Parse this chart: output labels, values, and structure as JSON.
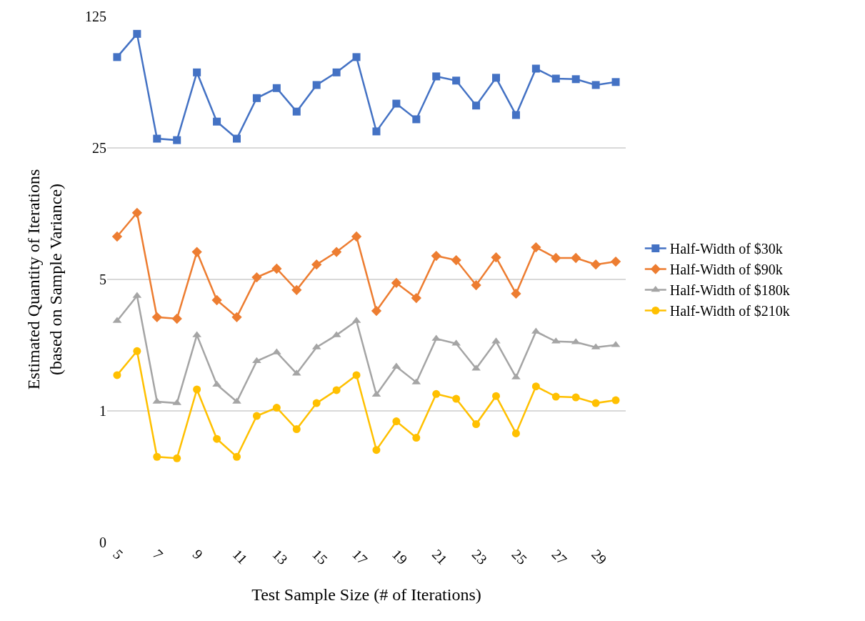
{
  "chart_data": {
    "type": "line",
    "xlabel": "Test Sample Size (# of Iterations)",
    "ylabel": "Estimated Quantity of Iterations\n(based on Sample Variance)",
    "categories": [
      "5",
      null,
      "7",
      null,
      "9",
      null,
      "11",
      null,
      "13",
      null,
      "15",
      null,
      "17",
      null,
      "19",
      null,
      "21",
      null,
      "23",
      null,
      "25",
      null,
      "27",
      null,
      "29",
      null
    ],
    "log": true,
    "ylim": [
      0.2,
      125
    ],
    "yticks": [
      {
        "value": 0.2,
        "label": "0"
      },
      1,
      5,
      25,
      125
    ],
    "grid": "y",
    "legend": "right",
    "line_style": "solid",
    "series": [
      {
        "name": "Half-Width of $30k",
        "color": "#4472c4",
        "marker": "square",
        "values": [
          76,
          101,
          28,
          27.5,
          63,
          34.5,
          28,
          46,
          52,
          39,
          54,
          63,
          76,
          30.6,
          43,
          35.5,
          60,
          57,
          42,
          59,
          37.4,
          66,
          58.4,
          58,
          54,
          56
        ]
      },
      {
        "name": "Half-Width of $90k",
        "color": "#ed7d31",
        "marker": "diamond",
        "values": [
          8.45,
          11.3,
          3.15,
          3.09,
          7.0,
          3.88,
          3.15,
          5.13,
          5.7,
          4.39,
          6.0,
          7.0,
          8.45,
          3.4,
          4.79,
          3.98,
          6.67,
          6.33,
          4.66,
          6.55,
          4.2,
          7.41,
          6.5,
          6.5,
          6.0,
          6.22
        ]
      },
      {
        "name": "Half-Width of $180k",
        "color": "#a5a5a5",
        "marker": "triangle",
        "values": [
          3.01,
          4.09,
          1.12,
          1.1,
          2.53,
          1.38,
          1.12,
          1.84,
          2.05,
          1.58,
          2.18,
          2.53,
          3.01,
          1.22,
          1.72,
          1.42,
          2.42,
          2.28,
          1.68,
          2.34,
          1.51,
          2.64,
          2.34,
          2.32,
          2.18,
          2.24
        ]
      },
      {
        "name": "Half-Width of $210k",
        "color": "#ffc000",
        "marker": "circle",
        "values": [
          1.55,
          2.08,
          0.57,
          0.56,
          1.3,
          0.71,
          0.57,
          0.94,
          1.04,
          0.8,
          1.1,
          1.29,
          1.55,
          0.62,
          0.88,
          0.72,
          1.23,
          1.16,
          0.85,
          1.2,
          0.76,
          1.35,
          1.19,
          1.18,
          1.1,
          1.14
        ]
      }
    ]
  }
}
